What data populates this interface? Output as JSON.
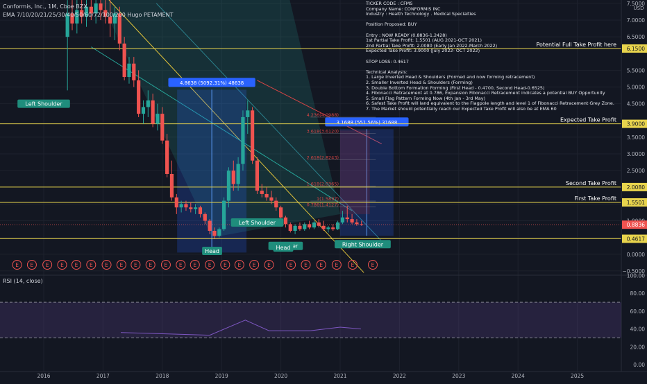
{
  "header": {
    "symbol_line": "Conformis, Inc., 1M, Cboe BZX",
    "ema_line": "EMA 7/10/20/21/25/30/40/50/60/72/100/200 Hugo PETAMENT"
  },
  "notes": [
    "TICKER CODE : CFMS",
    "Company Name: CONFORMIS INC",
    "Industry : Health Technology . Medical Specialties",
    "",
    "Position Proposed: BUY",
    "",
    "Entry : NOW READY (0.8836-1.2428)",
    "1st Partial Take Profit: 1.5501 (AUG 2021-OCT 2021)",
    "2nd Partial Take Profit: 2.0080 (Early Jan 2022-March 2022)",
    "Expected Take Profit: 3.9000 (July 2022- OCT 2022)",
    "",
    "STOP LOSS: 0.4617",
    "",
    "Technical Analysis:",
    "1. Large Inverted Head & Shoulders (Formed and now forming retracement)",
    "2. Smaller Inverted Head & Shoulders (Forming)",
    "3. Double Bottom Formation Forming (First Head - 0.4700, Second Head-0.6525)",
    "4. Fibonacci Retracement at 0.786, Expansion Fibonacci Retracement indicates a potential BUY Opportunity",
    "5. Small Flag Pattern Forming Now (4th Jan - 3rd May)",
    "6. Safest Take Profit will land equivalent to the Flagpole length and level 1 of Fibonacci Retracement Grey Zone.",
    "7. The Market should potentially reach our Expected Take Profit will also be at EMA 60"
  ],
  "rsi": {
    "title": "RSI (14, close)",
    "ticks": [
      {
        "v": 100,
        "label": "100.00"
      },
      {
        "v": 80,
        "label": "80.00"
      },
      {
        "v": 60,
        "label": "60.00"
      },
      {
        "v": 40,
        "label": "40.00"
      },
      {
        "v": 20,
        "label": "20.00"
      },
      {
        "v": 0,
        "label": "0.00"
      }
    ],
    "upper": 70,
    "lower": 30,
    "band_color": "#7e57c2"
  },
  "chart_data": {
    "type": "candlestick",
    "x_axis_labels": [
      "2016",
      "2017",
      "2018",
      "2019",
      "2020",
      "2021",
      "2022",
      "2023",
      "2024",
      "2025"
    ],
    "y_ticks": [
      {
        "v": 7.5,
        "label": "7.5000"
      },
      {
        "v": 7.0,
        "label": "7.0000"
      },
      {
        "v": 6.5,
        "label": "6.5000"
      },
      {
        "v": 5.5,
        "label": "5.5000"
      },
      {
        "v": 5.0,
        "label": "5.0000"
      },
      {
        "v": 4.5,
        "label": "4.5000"
      },
      {
        "v": 3.5,
        "label": "3.5000"
      },
      {
        "v": 3.0,
        "label": "3.0000"
      },
      {
        "v": 2.5,
        "label": "2.5000"
      },
      {
        "v": 1.5,
        "label": "1.5000"
      },
      {
        "v": 1.0,
        "label": "1.0000"
      },
      {
        "v": 0.5,
        "label": "0.5000"
      },
      {
        "v": 0.0,
        "label": "0.0000"
      },
      {
        "v": -0.5,
        "label": "−0.5000"
      }
    ],
    "y_top_label": "USD",
    "ylim": [
      -0.6,
      7.6
    ],
    "levels": [
      {
        "v": 6.15,
        "label": "6.1500",
        "text": "Potential Full Take Profit here"
      },
      {
        "v": 3.9,
        "label": "3.9000",
        "text": "Expected Take Profit"
      },
      {
        "v": 2.008,
        "label": "2.0080",
        "text": "Second Take Profit"
      },
      {
        "v": 1.5501,
        "label": "1.5501",
        "text": "First Take Profit"
      },
      {
        "v": 0.4617,
        "label": "0.4617",
        "text": ""
      }
    ],
    "current_price": {
      "v": 0.8836,
      "label": "0.8836"
    },
    "fib_labels": [
      {
        "v": 4.0988,
        "text": "4.236(4.0988)"
      },
      {
        "v": 3.612,
        "text": "3.618(3.6120)"
      },
      {
        "v": 2.8243,
        "text": "2.618(2.8243)"
      },
      {
        "v": 2.0365,
        "text": "1.618(2.0365)"
      },
      {
        "v": 1.5897,
        "text": "1(1.5897)"
      },
      {
        "v": 1.4127,
        "text": "0.786(1.4127)"
      }
    ],
    "annotations": [
      {
        "text": "Left Shoulder",
        "t": 2016.0,
        "v": 4.5
      },
      {
        "text": "Head",
        "t": 2018.84,
        "v": 0.1
      },
      {
        "text": "Left Shoulder",
        "t": 2019.6,
        "v": 0.95
      },
      {
        "text": "Shoulder",
        "t": 2020.08,
        "v": 0.25
      },
      {
        "text": "Head",
        "t": 2020.04,
        "v": 0.2
      },
      {
        "text": "Right Shoulder",
        "t": 2021.38,
        "v": 0.3
      }
    ],
    "measures": [
      {
        "text": "4.8638 (5092.31%) 48638",
        "t0": 2018.25,
        "t1": 2019.42,
        "v0": 0.05,
        "v1": 4.92
      },
      {
        "text": "3.1688 (551.56%) 31688",
        "t0": 2021.0,
        "t1": 2021.9,
        "v0": 0.55,
        "v1": 3.74
      }
    ],
    "earnings_marker": "E",
    "earnings_t": [
      2015.55,
      2015.8,
      2016.06,
      2016.31,
      2016.55,
      2016.8,
      2017.06,
      2017.31,
      2017.55,
      2017.8,
      2018.06,
      2018.31,
      2018.55,
      2018.8,
      2019.06,
      2019.3,
      2019.55,
      2019.8,
      2020.17,
      2020.42,
      2020.68,
      2020.94,
      2021.21,
      2021.55
    ],
    "candles": [
      {
        "t": 2016.4,
        "o": 6.5,
        "h": 7.6,
        "l": 4.9,
        "c": 7.2
      },
      {
        "t": 2016.48,
        "o": 7.2,
        "h": 7.6,
        "l": 6.7,
        "c": 6.9
      },
      {
        "t": 2016.56,
        "o": 6.9,
        "h": 7.6,
        "l": 6.6,
        "c": 7.3
      },
      {
        "t": 2016.64,
        "o": 7.3,
        "h": 7.6,
        "l": 6.9,
        "c": 7.1
      },
      {
        "t": 2016.72,
        "o": 7.1,
        "h": 7.6,
        "l": 6.8,
        "c": 7.4
      },
      {
        "t": 2016.8,
        "o": 7.4,
        "h": 7.6,
        "l": 7.0,
        "c": 7.2
      },
      {
        "t": 2016.88,
        "o": 7.2,
        "h": 7.6,
        "l": 6.9,
        "c": 7.5
      },
      {
        "t": 2016.96,
        "o": 7.5,
        "h": 7.6,
        "l": 7.0,
        "c": 7.3
      },
      {
        "t": 2017.04,
        "o": 7.3,
        "h": 7.6,
        "l": 6.9,
        "c": 7.1
      },
      {
        "t": 2017.12,
        "o": 7.1,
        "h": 7.6,
        "l": 6.5,
        "c": 6.9
      },
      {
        "t": 2017.2,
        "o": 6.9,
        "h": 7.4,
        "l": 6.4,
        "c": 7.2
      },
      {
        "t": 2017.28,
        "o": 7.2,
        "h": 7.4,
        "l": 6.1,
        "c": 6.3
      },
      {
        "t": 2017.36,
        "o": 6.3,
        "h": 6.5,
        "l": 5.2,
        "c": 5.3
      },
      {
        "t": 2017.44,
        "o": 5.3,
        "h": 5.9,
        "l": 5.1,
        "c": 5.7
      },
      {
        "t": 2017.52,
        "o": 5.7,
        "h": 5.9,
        "l": 5.0,
        "c": 5.2
      },
      {
        "t": 2017.6,
        "o": 5.2,
        "h": 5.5,
        "l": 4.1,
        "c": 4.2
      },
      {
        "t": 2017.68,
        "o": 4.2,
        "h": 4.6,
        "l": 3.9,
        "c": 4.4
      },
      {
        "t": 2017.76,
        "o": 4.4,
        "h": 4.9,
        "l": 4.1,
        "c": 4.6
      },
      {
        "t": 2017.84,
        "o": 4.6,
        "h": 4.8,
        "l": 3.8,
        "c": 3.9
      },
      {
        "t": 2017.92,
        "o": 3.9,
        "h": 4.5,
        "l": 3.7,
        "c": 4.2
      },
      {
        "t": 2018.0,
        "o": 4.2,
        "h": 4.4,
        "l": 3.3,
        "c": 3.4
      },
      {
        "t": 2018.08,
        "o": 3.4,
        "h": 3.6,
        "l": 2.3,
        "c": 2.4
      },
      {
        "t": 2018.16,
        "o": 2.4,
        "h": 2.8,
        "l": 1.6,
        "c": 1.7
      },
      {
        "t": 2018.24,
        "o": 1.7,
        "h": 1.8,
        "l": 1.2,
        "c": 1.4
      },
      {
        "t": 2018.32,
        "o": 1.4,
        "h": 1.6,
        "l": 1.25,
        "c": 1.5
      },
      {
        "t": 2018.4,
        "o": 1.5,
        "h": 1.6,
        "l": 1.3,
        "c": 1.4
      },
      {
        "t": 2018.48,
        "o": 1.4,
        "h": 1.55,
        "l": 1.25,
        "c": 1.35
      },
      {
        "t": 2018.56,
        "o": 1.35,
        "h": 1.5,
        "l": 1.2,
        "c": 1.4
      },
      {
        "t": 2018.64,
        "o": 1.4,
        "h": 1.45,
        "l": 1.1,
        "c": 1.2
      },
      {
        "t": 2018.72,
        "o": 1.2,
        "h": 1.25,
        "l": 0.9,
        "c": 1.0
      },
      {
        "t": 2018.8,
        "o": 1.0,
        "h": 1.05,
        "l": 0.6,
        "c": 0.7
      },
      {
        "t": 2018.88,
        "o": 0.7,
        "h": 0.8,
        "l": 0.47,
        "c": 0.55
      },
      {
        "t": 2018.96,
        "o": 0.55,
        "h": 0.8,
        "l": 0.5,
        "c": 0.75
      },
      {
        "t": 2019.04,
        "o": 0.75,
        "h": 1.7,
        "l": 0.7,
        "c": 1.6
      },
      {
        "t": 2019.12,
        "o": 1.6,
        "h": 2.6,
        "l": 1.4,
        "c": 2.5
      },
      {
        "t": 2019.2,
        "o": 2.5,
        "h": 2.8,
        "l": 1.9,
        "c": 2.1
      },
      {
        "t": 2019.28,
        "o": 2.1,
        "h": 2.9,
        "l": 1.9,
        "c": 2.7
      },
      {
        "t": 2019.36,
        "o": 2.7,
        "h": 4.3,
        "l": 2.5,
        "c": 4.1
      },
      {
        "t": 2019.44,
        "o": 4.1,
        "h": 4.6,
        "l": 3.6,
        "c": 4.3
      },
      {
        "t": 2019.52,
        "o": 4.3,
        "h": 4.4,
        "l": 2.7,
        "c": 2.8
      },
      {
        "t": 2019.6,
        "o": 2.8,
        "h": 2.9,
        "l": 1.8,
        "c": 1.9
      },
      {
        "t": 2019.68,
        "o": 1.9,
        "h": 2.1,
        "l": 1.7,
        "c": 1.8
      },
      {
        "t": 2019.76,
        "o": 1.8,
        "h": 2.0,
        "l": 1.6,
        "c": 1.7
      },
      {
        "t": 2019.84,
        "o": 1.7,
        "h": 1.9,
        "l": 1.5,
        "c": 1.6
      },
      {
        "t": 2019.92,
        "o": 1.6,
        "h": 1.7,
        "l": 1.3,
        "c": 1.4
      },
      {
        "t": 2020.0,
        "o": 1.4,
        "h": 1.45,
        "l": 1.0,
        "c": 1.1
      },
      {
        "t": 2020.08,
        "o": 1.1,
        "h": 1.15,
        "l": 0.8,
        "c": 0.9
      },
      {
        "t": 2020.16,
        "o": 0.9,
        "h": 0.95,
        "l": 0.65,
        "c": 0.7
      },
      {
        "t": 2020.24,
        "o": 0.7,
        "h": 0.9,
        "l": 0.6,
        "c": 0.85
      },
      {
        "t": 2020.32,
        "o": 0.85,
        "h": 0.95,
        "l": 0.7,
        "c": 0.75
      },
      {
        "t": 2020.4,
        "o": 0.75,
        "h": 0.95,
        "l": 0.7,
        "c": 0.9
      },
      {
        "t": 2020.48,
        "o": 0.9,
        "h": 1.0,
        "l": 0.75,
        "c": 0.8
      },
      {
        "t": 2020.56,
        "o": 0.8,
        "h": 1.0,
        "l": 0.75,
        "c": 0.95
      },
      {
        "t": 2020.64,
        "o": 0.95,
        "h": 1.05,
        "l": 0.8,
        "c": 0.85
      },
      {
        "t": 2020.72,
        "o": 0.85,
        "h": 1.0,
        "l": 0.7,
        "c": 0.75
      },
      {
        "t": 2020.8,
        "o": 0.75,
        "h": 0.85,
        "l": 0.65,
        "c": 0.8
      },
      {
        "t": 2020.88,
        "o": 0.8,
        "h": 0.9,
        "l": 0.7,
        "c": 0.75
      },
      {
        "t": 2020.96,
        "o": 0.75,
        "h": 1.0,
        "l": 0.72,
        "c": 0.95
      },
      {
        "t": 2021.04,
        "o": 0.95,
        "h": 1.3,
        "l": 0.9,
        "c": 1.1
      },
      {
        "t": 2021.12,
        "o": 1.1,
        "h": 1.45,
        "l": 0.95,
        "c": 1.05
      },
      {
        "t": 2021.2,
        "o": 1.05,
        "h": 1.2,
        "l": 0.9,
        "c": 0.95
      },
      {
        "t": 2021.28,
        "o": 0.95,
        "h": 1.05,
        "l": 0.85,
        "c": 0.9
      },
      {
        "t": 2021.36,
        "o": 0.9,
        "h": 1.0,
        "l": 0.85,
        "c": 0.88
      }
    ]
  }
}
